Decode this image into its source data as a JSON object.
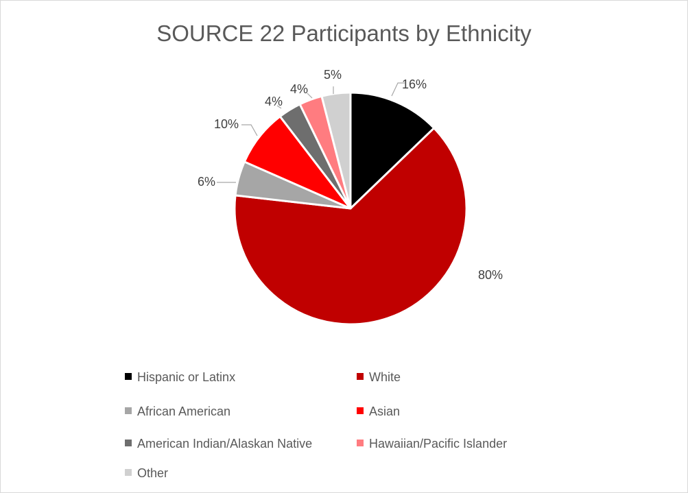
{
  "chart_data": {
    "type": "pie",
    "title": "SOURCE 22 Participants by Ethnicity",
    "categories": [
      "Hispanic or Latinx",
      "White",
      "African American",
      "Asian",
      "American Indian/Alaskan Native",
      "Hawaiian/Pacific Islander",
      "Other"
    ],
    "values": [
      16,
      80,
      6,
      10,
      4,
      4,
      5
    ],
    "data_labels": [
      "16%",
      "80%",
      "6%",
      "10%",
      "4%",
      "4%",
      "5%"
    ],
    "colors": [
      "#000000",
      "#c00000",
      "#a6a6a6",
      "#ff0000",
      "#6e6e6e",
      "#ff7c80",
      "#d0d0d0"
    ],
    "legend_position": "bottom"
  }
}
